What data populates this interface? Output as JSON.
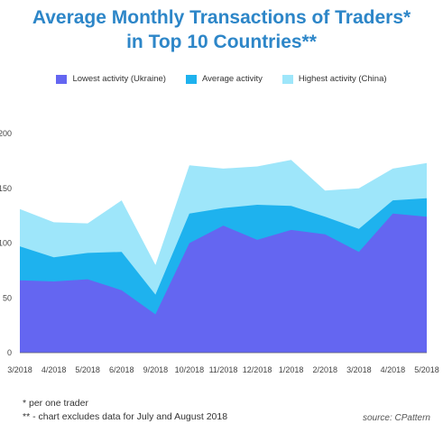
{
  "colors": {
    "title": "#2d86c8",
    "lowest": "#6466f1",
    "average": "#1eb2ee",
    "highest": "#9ee6fa"
  },
  "footnotes": {
    "line1": "*  per one trader",
    "line2": "** - chart excludes data for July and August 2018"
  },
  "source": "source: CPattern",
  "chart_data": {
    "type": "area",
    "title_line1": "Average Monthly Transactions of Traders*",
    "title_line2": "in Top 10 Countries**",
    "stacked": false,
    "categories": [
      "3/2018",
      "4/2018",
      "5/2018",
      "6/2018",
      "9/2018",
      "10/2018",
      "11/2018",
      "12/2018",
      "1/2018",
      "2/2018",
      "3/2018",
      "4/2018",
      "5/2018"
    ],
    "series": [
      {
        "name": "Lowest activity (Ukraine)",
        "color_key": "lowest",
        "values": [
          66,
          65,
          67,
          57,
          35,
          100,
          116,
          103,
          112,
          108,
          92,
          127,
          124
        ]
      },
      {
        "name": "Average activity",
        "color_key": "average",
        "values": [
          97,
          87,
          91,
          92,
          53,
          127,
          132,
          135,
          134,
          124,
          113,
          139,
          141
        ]
      },
      {
        "name": "Highest activity (China)",
        "color_key": "highest",
        "values": [
          131,
          119,
          118,
          139,
          80,
          171,
          168,
          170,
          176,
          148,
          150,
          168,
          173
        ]
      }
    ],
    "y_ticks": [
      {
        "value": 0,
        "label": "0"
      },
      {
        "value": 50,
        "label": "50"
      },
      {
        "value": 100,
        "label": "100"
      },
      {
        "value": 150,
        "label": "150"
      },
      {
        "value": 200,
        "label": "200"
      }
    ],
    "ylim": [
      0,
      200
    ],
    "grid": false,
    "legend_position": "top-center"
  }
}
